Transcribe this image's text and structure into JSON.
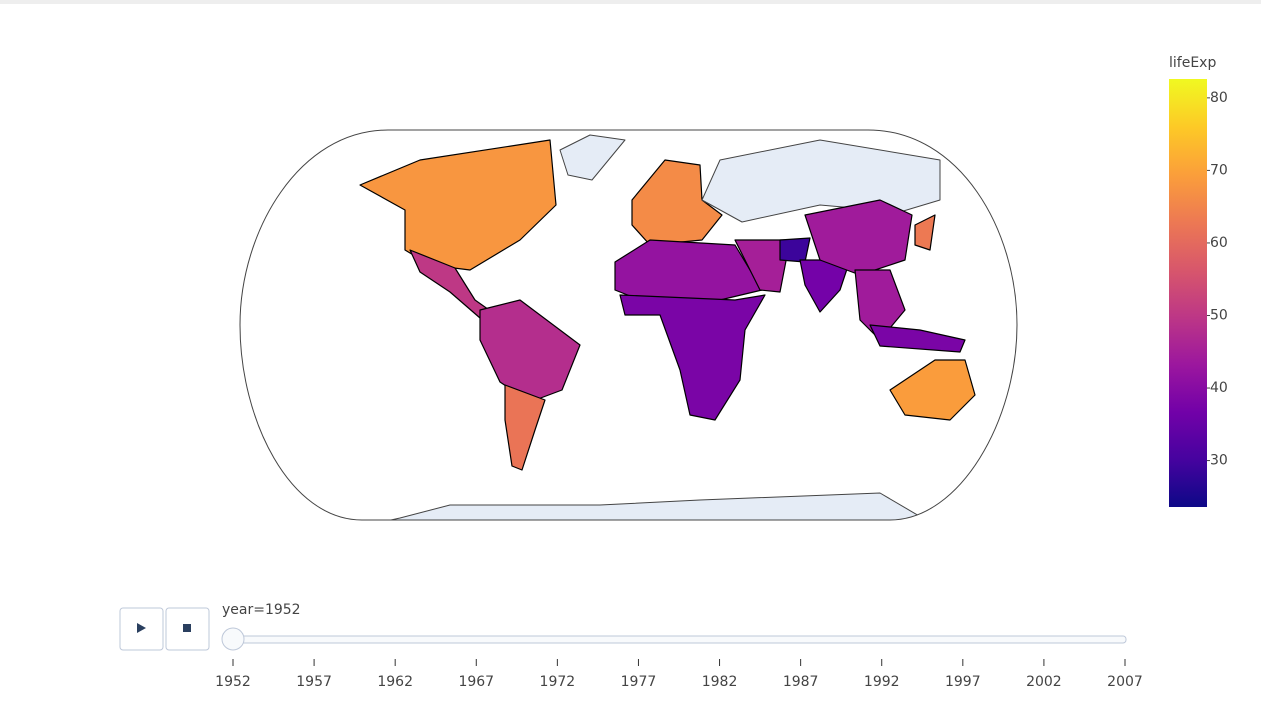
{
  "chart_data": {
    "type": "choropleth",
    "values": [
      68,
      50,
      48,
      62,
      66,
      42,
      38,
      45,
      29,
      37,
      null,
      44,
      44,
      38,
      63,
      69,
      null,
      null
    ],
    "colorscale": [
      "#0d0887",
      "#46039f",
      "#7201a8",
      "#9c179e",
      "#bd3786",
      "#d8576b",
      "#ed7953",
      "#fb9f3a",
      "#fdca26",
      "#f0f921"
    ],
    "missing_color": "#e5ecf6",
    "colorbar": {
      "title": "lifeExp",
      "clim": [
        23.6,
        82.6
      ],
      "ticks": [
        30,
        40,
        50,
        60,
        70,
        80
      ]
    },
    "slider": {
      "current_label": "year=1952",
      "active": 0,
      "steps": [
        1952,
        1957,
        1962,
        1967,
        1972,
        1977,
        1982,
        1987,
        1992,
        1997,
        2002,
        2007
      ]
    }
  }
}
